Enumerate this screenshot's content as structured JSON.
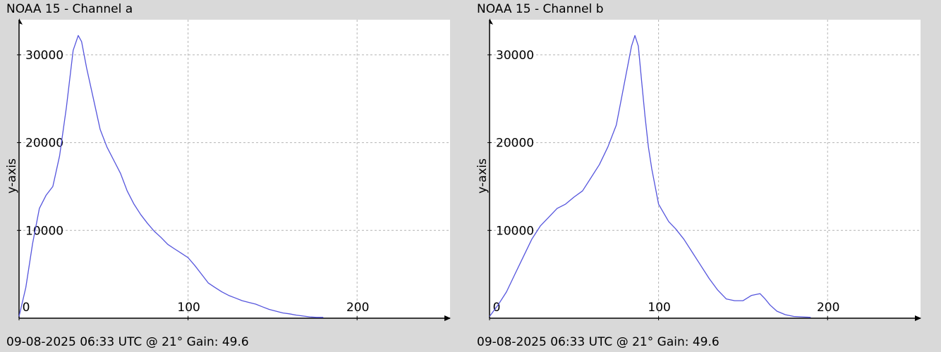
{
  "colors": {
    "background": "#d9d9d9",
    "plot_bg": "#ffffff",
    "line": "#5555dd",
    "grid": "#b4b4b4",
    "axis": "#000000"
  },
  "chart_data": [
    {
      "type": "line",
      "title": "NOAA 15 - Channel a",
      "subtitle": "09-08-2025 06:33 UTC @ 21° Gain: 49.6",
      "xlabel": "",
      "ylabel": "y-axis",
      "xlim": [
        0,
        255
      ],
      "ylim": [
        0,
        34000
      ],
      "grid": true,
      "x_ticks": [
        0,
        100,
        200
      ],
      "x_tick_labels": [
        "0",
        "100",
        "200"
      ],
      "y_ticks": [
        10000,
        20000,
        30000
      ],
      "y_tick_labels": [
        "10000",
        "20000",
        "30000"
      ],
      "series": [
        {
          "x": [
            0,
            4,
            8,
            12,
            16,
            20,
            24,
            28,
            32,
            35,
            37,
            40,
            44,
            48,
            52,
            56,
            60,
            64,
            68,
            72,
            76,
            80,
            84,
            88,
            92,
            96,
            100,
            104,
            108,
            112,
            116,
            120,
            124,
            128,
            132,
            136,
            140,
            144,
            148,
            152,
            156,
            160,
            164,
            168,
            172,
            176,
            180
          ],
          "y": [
            200,
            3500,
            8500,
            12500,
            14000,
            15000,
            18500,
            24000,
            30500,
            32200,
            31500,
            28500,
            25000,
            21500,
            19500,
            18000,
            16500,
            14500,
            13000,
            11800,
            10800,
            9900,
            9200,
            8400,
            7900,
            7400,
            6900,
            6000,
            5000,
            4000,
            3500,
            3000,
            2600,
            2300,
            2000,
            1800,
            1600,
            1300,
            1000,
            800,
            600,
            500,
            350,
            250,
            150,
            100,
            100
          ]
        }
      ]
    },
    {
      "type": "line",
      "title": "NOAA 15 - Channel b",
      "subtitle": "09-08-2025 06:33 UTC @ 21° Gain: 49.6",
      "xlabel": "",
      "ylabel": "y-axis",
      "xlim": [
        0,
        255
      ],
      "ylim": [
        0,
        34000
      ],
      "grid": true,
      "x_ticks": [
        0,
        100,
        200
      ],
      "x_tick_labels": [
        "0",
        "100",
        "200"
      ],
      "y_ticks": [
        10000,
        20000,
        30000
      ],
      "y_tick_labels": [
        "10000",
        "20000",
        "30000"
      ],
      "series": [
        {
          "x": [
            0,
            5,
            10,
            15,
            20,
            25,
            30,
            35,
            40,
            45,
            50,
            55,
            60,
            65,
            70,
            75,
            78,
            81,
            84,
            86,
            88,
            90,
            92,
            94,
            96,
            98,
            100,
            103,
            106,
            110,
            115,
            120,
            125,
            130,
            135,
            140,
            145,
            150,
            155,
            160,
            163,
            166,
            170,
            175,
            180,
            185,
            190
          ],
          "y": [
            200,
            1500,
            3000,
            5000,
            7000,
            9000,
            10500,
            11500,
            12500,
            13000,
            13800,
            14500,
            16000,
            17500,
            19500,
            22000,
            25000,
            28000,
            31000,
            32200,
            31000,
            27000,
            23000,
            19500,
            17000,
            15000,
            13000,
            12000,
            11000,
            10200,
            9000,
            7500,
            6000,
            4500,
            3200,
            2200,
            2000,
            2000,
            2600,
            2800,
            2200,
            1500,
            800,
            400,
            200,
            150,
            100
          ]
        }
      ]
    }
  ]
}
